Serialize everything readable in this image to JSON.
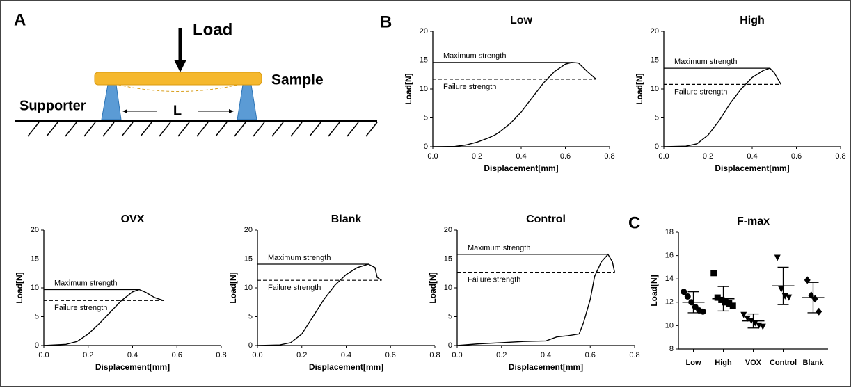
{
  "diagram": {
    "panel_label": "A",
    "load": "Load",
    "sample": "Sample",
    "supporter": "Supporter",
    "span": "L"
  },
  "chart_data": [
    {
      "type": "line",
      "panel_label": "B",
      "title": "Low",
      "xlabel": "Displacement[mm]",
      "ylabel": "Load[N]",
      "color": "#000000",
      "x": [
        0,
        0.1,
        0.15,
        0.2,
        0.25,
        0.28,
        0.3,
        0.35,
        0.4,
        0.45,
        0.5,
        0.55,
        0.6,
        0.63,
        0.66,
        0.7,
        0.73,
        0.74
      ],
      "values": [
        0,
        0.05,
        0.3,
        0.8,
        1.5,
        2,
        2.5,
        4,
        6,
        8.5,
        11,
        13,
        14.3,
        14.6,
        14.5,
        13,
        12,
        11.7
      ],
      "reference_lines": [
        {
          "label": "Maximum strength",
          "value": 14.6,
          "style": "solid"
        },
        {
          "label": "Failure strength",
          "value": 11.7,
          "style": "dashed"
        }
      ],
      "xlim": [
        0,
        0.8
      ],
      "xticks": [
        {
          "value": 0,
          "label": "0.0"
        },
        0.2,
        0.4,
        0.6,
        0.8
      ],
      "ylim": [
        0,
        20
      ],
      "yticks": [
        0,
        5,
        10,
        15,
        20
      ]
    },
    {
      "type": "line",
      "title": "High",
      "xlabel": "Displacement[mm]",
      "ylabel": "Load[N]",
      "color": "#000000",
      "x": [
        0,
        0.1,
        0.15,
        0.2,
        0.25,
        0.3,
        0.35,
        0.4,
        0.45,
        0.48,
        0.5,
        0.53
      ],
      "values": [
        0,
        0.1,
        0.5,
        2,
        4.5,
        7.5,
        10,
        12,
        13.2,
        13.6,
        12.8,
        10.8
      ],
      "reference_lines": [
        {
          "label": "Maximum strength",
          "value": 13.6,
          "style": "solid"
        },
        {
          "label": "Failure strength",
          "value": 10.8,
          "style": "dashed"
        }
      ],
      "xlim": [
        0,
        0.8
      ],
      "xticks": [
        {
          "value": 0,
          "label": "0.0"
        },
        0.2,
        0.4,
        0.6,
        0.8
      ],
      "ylim": [
        0,
        20
      ],
      "yticks": [
        0,
        5,
        10,
        15,
        20
      ]
    },
    {
      "type": "line",
      "title": "OVX",
      "xlabel": "Displacement[mm]",
      "ylabel": "Load[N]",
      "color": "#000000",
      "x": [
        0,
        0.1,
        0.15,
        0.2,
        0.25,
        0.3,
        0.35,
        0.4,
        0.43,
        0.46,
        0.5,
        0.54
      ],
      "values": [
        0,
        0.2,
        0.7,
        2,
        3.8,
        5.8,
        7.8,
        9.3,
        9.7,
        9.2,
        8.3,
        7.8
      ],
      "reference_lines": [
        {
          "label": "Maximum strength",
          "value": 9.7,
          "style": "solid"
        },
        {
          "label": "Failure strength",
          "value": 7.8,
          "style": "dashed"
        }
      ],
      "xlim": [
        0,
        0.8
      ],
      "xticks": [
        {
          "value": 0,
          "label": "0.0"
        },
        0.2,
        0.4,
        0.6,
        0.8
      ],
      "ylim": [
        0,
        20
      ],
      "yticks": [
        0,
        5,
        10,
        15,
        20
      ]
    },
    {
      "type": "line",
      "title": "Blank",
      "xlabel": "Displacement[mm]",
      "ylabel": "Load[N]",
      "color": "#000000",
      "x": [
        0,
        0.1,
        0.15,
        0.2,
        0.25,
        0.3,
        0.35,
        0.4,
        0.45,
        0.5,
        0.53,
        0.54,
        0.56
      ],
      "values": [
        0,
        0.1,
        0.5,
        2,
        5,
        8,
        10.5,
        12.3,
        13.5,
        14.1,
        13.5,
        11.8,
        11.3
      ],
      "reference_lines": [
        {
          "label": "Maximum strength",
          "value": 14.1,
          "style": "solid"
        },
        {
          "label": "Failure strength",
          "value": 11.3,
          "style": "dashed"
        }
      ],
      "xlim": [
        0,
        0.8
      ],
      "xticks": [
        {
          "value": 0,
          "label": "0.0"
        },
        0.2,
        0.4,
        0.6,
        0.8
      ],
      "ylim": [
        0,
        20
      ],
      "yticks": [
        0,
        5,
        10,
        15,
        20
      ]
    },
    {
      "type": "line",
      "title": "Control",
      "xlabel": "Displacement[mm]",
      "ylabel": "Load[N]",
      "color": "#000000",
      "x": [
        0,
        0.1,
        0.2,
        0.3,
        0.4,
        0.45,
        0.5,
        0.55,
        0.57,
        0.6,
        0.62,
        0.65,
        0.68,
        0.7,
        0.71
      ],
      "values": [
        0,
        0.3,
        0.5,
        0.7,
        0.8,
        1.5,
        1.7,
        2,
        4,
        8,
        12,
        14.5,
        15.8,
        14.5,
        12.7
      ],
      "reference_lines": [
        {
          "label": "Maximum strength",
          "value": 15.8,
          "style": "solid"
        },
        {
          "label": "Failure strength",
          "value": 12.7,
          "style": "dashed"
        }
      ],
      "xlim": [
        0,
        0.8
      ],
      "xticks": [
        {
          "value": 0,
          "label": "0.0"
        },
        0.2,
        0.4,
        0.6,
        0.8
      ],
      "ylim": [
        0,
        20
      ],
      "yticks": [
        0,
        5,
        10,
        15,
        20
      ]
    },
    {
      "type": "dot",
      "panel_label": "C",
      "title": "F-max",
      "ylabel": "Load[N]",
      "color": "#000000",
      "categories": [
        "Low",
        "High",
        "VOX",
        "Control",
        "Blank"
      ],
      "markers": [
        "circle",
        "square",
        "triangle-down",
        "triangle-down",
        "diamond"
      ],
      "points": [
        [
          12.9,
          12.5,
          12.0,
          11.6,
          11.3,
          11.2
        ],
        [
          14.5,
          12.4,
          12.2,
          12.0,
          11.9,
          11.7
        ],
        [
          10.9,
          10.6,
          10.4,
          10.2,
          10.0,
          9.9
        ],
        [
          15.8,
          13.1,
          12.5,
          12.4
        ],
        [
          13.9,
          12.6,
          12.3,
          11.2
        ]
      ],
      "means": [
        12.0,
        12.3,
        10.4,
        13.4,
        12.4
      ],
      "sds": [
        0.9,
        1.05,
        0.6,
        1.6,
        1.3
      ],
      "ylim": [
        8,
        18
      ],
      "yticks": [
        8,
        10,
        12,
        14,
        16,
        18
      ]
    }
  ]
}
